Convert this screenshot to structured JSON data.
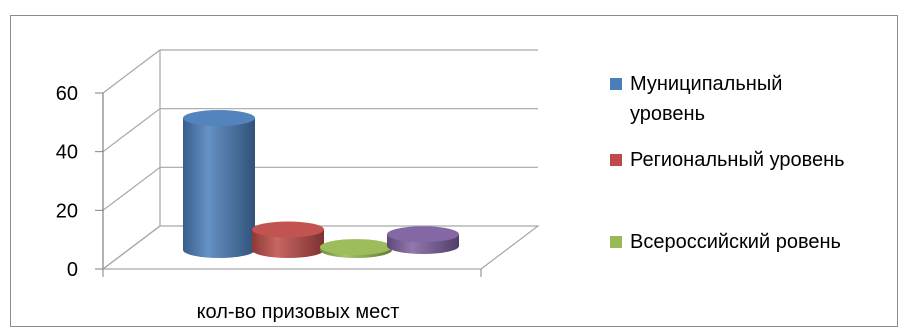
{
  "chart_data": {
    "type": "bar",
    "style": "3d-cylinder",
    "categories": [
      "кол-во призовых мест"
    ],
    "series": [
      {
        "name": "Муниципальный уровень",
        "values": [
          45
        ],
        "color": "#4a7ebb"
      },
      {
        "name": "Региональный уровень",
        "values": [
          7
        ],
        "color": "#be4b48"
      },
      {
        "name": "Всероссийский ровень",
        "values": [
          1
        ],
        "color": "#98b954"
      },
      {
        "name": "",
        "values": [
          4
        ],
        "color": "#7d60a0"
      }
    ],
    "yticks": [
      "0",
      "20",
      "40",
      "60"
    ],
    "ylim": [
      0,
      60
    ],
    "grid": true,
    "legend_position": "right",
    "legend_lines": [
      [
        "Муниципальный",
        "уровень"
      ],
      [
        "Региональный уровень"
      ],
      [
        "Всероссийский ровень"
      ]
    ]
  }
}
